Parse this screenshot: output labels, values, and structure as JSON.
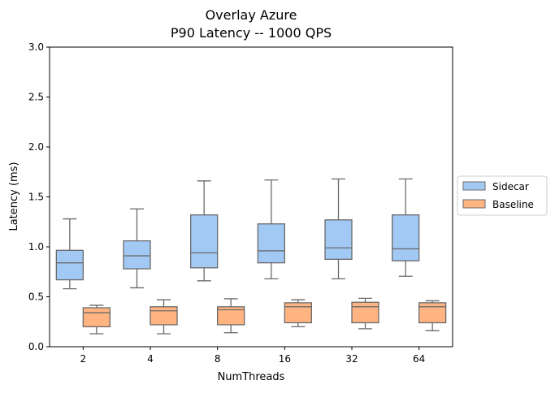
{
  "chart_data": {
    "type": "boxplot",
    "title": "Overlay Azure",
    "subtitle": "P90 Latency -- 1000 QPS",
    "xlabel": "NumThreads",
    "ylabel": "Latency (ms)",
    "ylim": [
      0,
      3.0
    ],
    "yticks": [
      "0.0",
      "0.5",
      "1.0",
      "1.5",
      "2.0",
      "2.5",
      "3.0"
    ],
    "categories": [
      "2",
      "4",
      "8",
      "16",
      "32",
      "64"
    ],
    "grid": false,
    "legend_position": "right",
    "series": [
      {
        "name": "Sidecar",
        "color": "#a1c9f4",
        "boxes": [
          {
            "whislo": 0.58,
            "q1": 0.67,
            "med": 0.84,
            "q3": 0.965,
            "whishi": 1.28
          },
          {
            "whislo": 0.59,
            "q1": 0.78,
            "med": 0.91,
            "q3": 1.06,
            "whishi": 1.38
          },
          {
            "whislo": 0.66,
            "q1": 0.79,
            "med": 0.94,
            "q3": 1.32,
            "whishi": 1.66
          },
          {
            "whislo": 0.68,
            "q1": 0.84,
            "med": 0.96,
            "q3": 1.23,
            "whishi": 1.67
          },
          {
            "whislo": 0.68,
            "q1": 0.875,
            "med": 0.99,
            "q3": 1.27,
            "whishi": 1.68
          },
          {
            "whislo": 0.705,
            "q1": 0.86,
            "med": 0.98,
            "q3": 1.32,
            "whishi": 1.68
          }
        ]
      },
      {
        "name": "Baseline",
        "color": "#ffb482",
        "boxes": [
          {
            "whislo": 0.13,
            "q1": 0.2,
            "med": 0.34,
            "q3": 0.39,
            "whishi": 0.415
          },
          {
            "whislo": 0.13,
            "q1": 0.22,
            "med": 0.36,
            "q3": 0.4,
            "whishi": 0.47
          },
          {
            "whislo": 0.14,
            "q1": 0.22,
            "med": 0.37,
            "q3": 0.4,
            "whishi": 0.48
          },
          {
            "whislo": 0.2,
            "q1": 0.24,
            "med": 0.4,
            "q3": 0.44,
            "whishi": 0.47
          },
          {
            "whislo": 0.18,
            "q1": 0.24,
            "med": 0.4,
            "q3": 0.445,
            "whishi": 0.485
          },
          {
            "whislo": 0.16,
            "q1": 0.24,
            "med": 0.4,
            "q3": 0.44,
            "whishi": 0.46
          }
        ]
      }
    ]
  }
}
